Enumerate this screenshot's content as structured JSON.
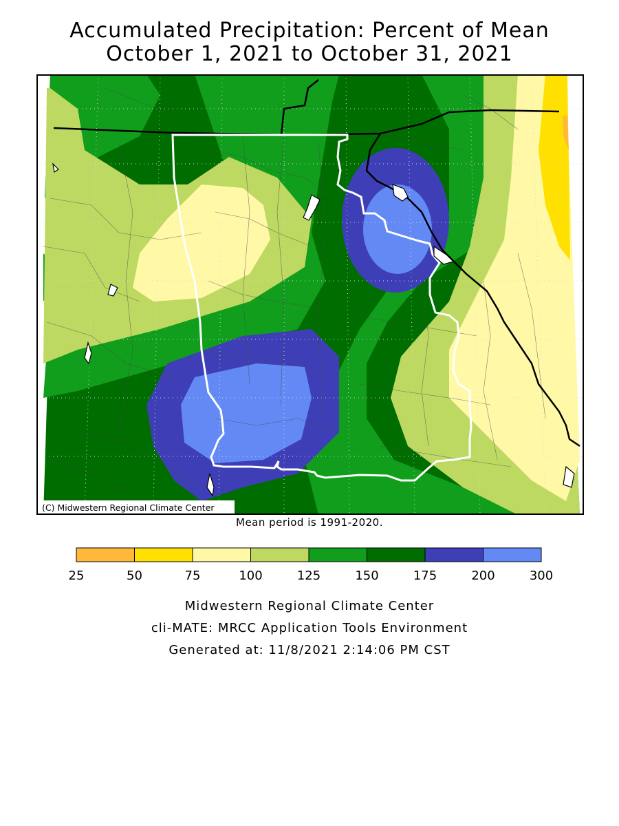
{
  "title": {
    "line1": "Accumulated Precipitation: Percent of Mean",
    "line2": "October 1, 2021 to October 31, 2021"
  },
  "map": {
    "copyright": "(C) Midwestern Regional Climate Center",
    "mean_period": "Mean period is 1991-2020."
  },
  "legend": {
    "bins": [
      {
        "from": 25,
        "to": 50,
        "color": "#ffb83a"
      },
      {
        "from": 50,
        "to": 75,
        "color": "#ffe000"
      },
      {
        "from": 75,
        "to": 100,
        "color": "#fff8a6"
      },
      {
        "from": 100,
        "to": 125,
        "color": "#bed962"
      },
      {
        "from": 125,
        "to": 150,
        "color": "#109e1c"
      },
      {
        "from": 150,
        "to": 175,
        "color": "#006d00"
      },
      {
        "from": 175,
        "to": 200,
        "color": "#3e3fb6"
      },
      {
        "from": 200,
        "to": 300,
        "color": "#6389f4"
      }
    ],
    "labels": [
      "25",
      "50",
      "75",
      "100",
      "125",
      "150",
      "175",
      "200",
      "300"
    ]
  },
  "footer": {
    "line1": "Midwestern Regional Climate Center",
    "line2": "cli-MATE: MRCC Application Tools Environment",
    "line3": "Generated at: 11/8/2021 2:14:06 PM CST"
  }
}
